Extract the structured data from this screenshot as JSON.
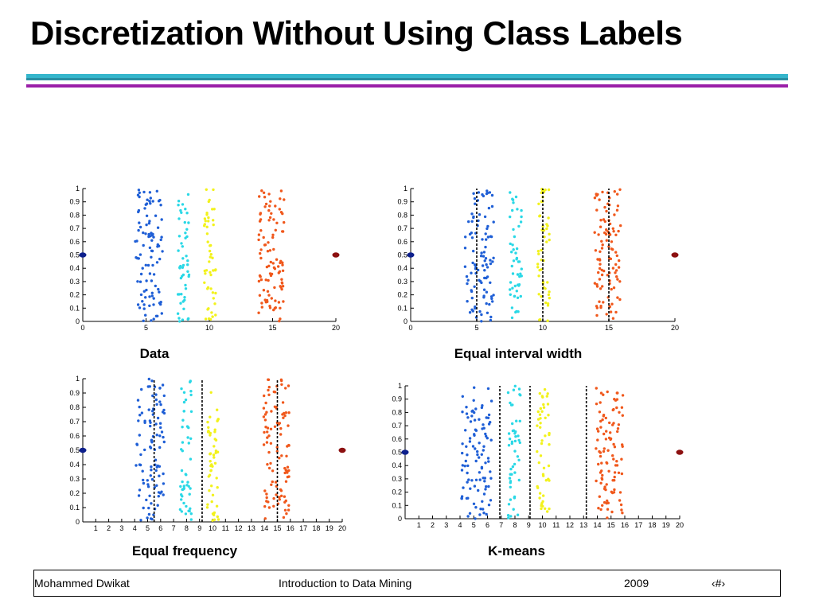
{
  "slide": {
    "title": "Discretization Without Using Class Labels"
  },
  "footer": {
    "author": "Mohammed Dwikat",
    "course": "Introduction to Data Mining",
    "year": "2009",
    "page": "‹#›"
  },
  "colors": {
    "cluster_1": "#1f5fd6",
    "cluster_2": "#2ad8e6",
    "cluster_3": "#f2f21c",
    "cluster_4": "#f0581c",
    "outlier_left": "#0d1f8c",
    "outlier_right": "#8c1010",
    "split_line": "#000000"
  },
  "chart_data": [
    {
      "type": "scatter",
      "caption": "Data",
      "xlim": [
        0,
        20
      ],
      "ylim": [
        0,
        1
      ],
      "xticks": [
        "0",
        "5",
        "10",
        "15",
        "20"
      ],
      "yticks": [
        "0",
        "0.1",
        "0.2",
        "0.3",
        "0.4",
        "0.5",
        "0.6",
        "0.7",
        "0.8",
        "0.9",
        "1"
      ],
      "clusters": [
        {
          "x_range": [
            4.1,
            6.3
          ],
          "y_range": [
            0,
            1
          ],
          "points": 100
        },
        {
          "x_range": [
            7.5,
            8.4
          ],
          "y_range": [
            0,
            1
          ],
          "points": 50
        },
        {
          "x_range": [
            9.6,
            10.5
          ],
          "y_range": [
            0,
            1
          ],
          "points": 50
        },
        {
          "x_range": [
            13.9,
            15.9
          ],
          "y_range": [
            0,
            1
          ],
          "points": 100
        }
      ],
      "outliers": [
        {
          "x": 0,
          "y": 0.5
        },
        {
          "x": 20,
          "y": 0.5
        }
      ],
      "split_lines": []
    },
    {
      "type": "scatter",
      "caption": "Equal interval width",
      "xlim": [
        0,
        20
      ],
      "ylim": [
        0,
        1
      ],
      "xticks": [
        "0",
        "5",
        "10",
        "15",
        "20"
      ],
      "yticks": [
        "0",
        "0.1",
        "0.2",
        "0.3",
        "0.4",
        "0.5",
        "0.6",
        "0.7",
        "0.8",
        "0.9",
        "1"
      ],
      "clusters": [
        {
          "x_range": [
            4.1,
            6.3
          ],
          "y_range": [
            0,
            1
          ],
          "points": 100
        },
        {
          "x_range": [
            7.5,
            8.4
          ],
          "y_range": [
            0,
            1
          ],
          "points": 50
        },
        {
          "x_range": [
            9.6,
            10.5
          ],
          "y_range": [
            0,
            1
          ],
          "points": 50
        },
        {
          "x_range": [
            13.9,
            15.9
          ],
          "y_range": [
            0,
            1
          ],
          "points": 100
        }
      ],
      "outliers": [
        {
          "x": 0,
          "y": 0.5
        },
        {
          "x": 20,
          "y": 0.5
        }
      ],
      "split_lines": [
        5,
        10,
        15
      ]
    },
    {
      "type": "scatter",
      "caption": "Equal frequency",
      "xlim": [
        0,
        20
      ],
      "ylim": [
        0,
        1
      ],
      "xticks": [
        "1",
        "2",
        "3",
        "4",
        "5",
        "6",
        "7",
        "8",
        "9",
        "10",
        "11",
        "12",
        "13",
        "14",
        "15",
        "16",
        "17",
        "18",
        "19",
        "20"
      ],
      "yticks": [
        "0",
        "0.1",
        "0.2",
        "0.3",
        "0.4",
        "0.5",
        "0.6",
        "0.7",
        "0.8",
        "0.9",
        "1"
      ],
      "clusters": [
        {
          "x_range": [
            4.1,
            6.3
          ],
          "y_range": [
            0,
            1
          ],
          "points": 100
        },
        {
          "x_range": [
            7.5,
            8.4
          ],
          "y_range": [
            0,
            1
          ],
          "points": 50
        },
        {
          "x_range": [
            9.6,
            10.5
          ],
          "y_range": [
            0,
            1
          ],
          "points": 50
        },
        {
          "x_range": [
            13.9,
            15.9
          ],
          "y_range": [
            0,
            1
          ],
          "points": 100
        }
      ],
      "outliers": [
        {
          "x": 0,
          "y": 0.5
        },
        {
          "x": 20,
          "y": 0.5
        }
      ],
      "split_lines": [
        5.5,
        9.2,
        15
      ]
    },
    {
      "type": "scatter",
      "caption": "K-means",
      "xlim": [
        0,
        20
      ],
      "ylim": [
        0,
        1
      ],
      "xticks": [
        "1",
        "2",
        "3",
        "4",
        "5",
        "6",
        "7",
        "8",
        "9",
        "10",
        "11",
        "12",
        "13",
        "14",
        "15",
        "16",
        "17",
        "18",
        "19",
        "20"
      ],
      "yticks": [
        "0",
        "0.1",
        "0.2",
        "0.3",
        "0.4",
        "0.5",
        "0.6",
        "0.7",
        "0.8",
        "0.9",
        "1"
      ],
      "clusters": [
        {
          "x_range": [
            4.1,
            6.3
          ],
          "y_range": [
            0,
            1
          ],
          "points": 100
        },
        {
          "x_range": [
            7.5,
            8.4
          ],
          "y_range": [
            0,
            1
          ],
          "points": 50
        },
        {
          "x_range": [
            9.6,
            10.5
          ],
          "y_range": [
            0,
            1
          ],
          "points": 50
        },
        {
          "x_range": [
            13.9,
            15.9
          ],
          "y_range": [
            0,
            1
          ],
          "points": 100
        }
      ],
      "outliers": [
        {
          "x": 0,
          "y": 0.5
        },
        {
          "x": 20,
          "y": 0.5
        }
      ],
      "split_lines": [
        6.9,
        9.1,
        13.2
      ]
    }
  ]
}
